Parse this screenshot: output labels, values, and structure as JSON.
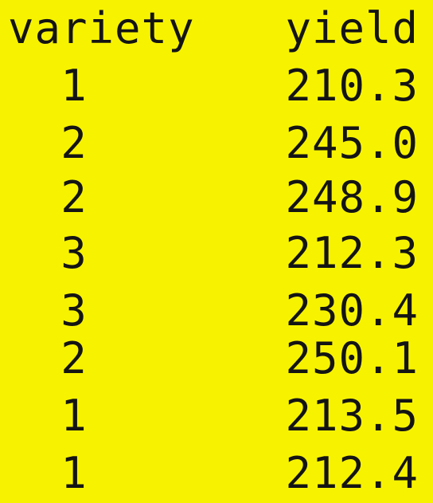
{
  "table": {
    "headers": [
      "variety",
      "yield"
    ],
    "rows": [
      [
        "1",
        "210.3"
      ],
      [
        "2",
        "245.0"
      ],
      [
        "2",
        "248.9"
      ],
      [
        "3",
        "212.3"
      ],
      [
        "3",
        "230.4"
      ],
      [
        "2",
        "250.1"
      ],
      [
        "1",
        "213.5"
      ],
      [
        "1",
        "212.4"
      ]
    ]
  },
  "colors": {
    "background": "#f7f300",
    "text": "#141414"
  }
}
